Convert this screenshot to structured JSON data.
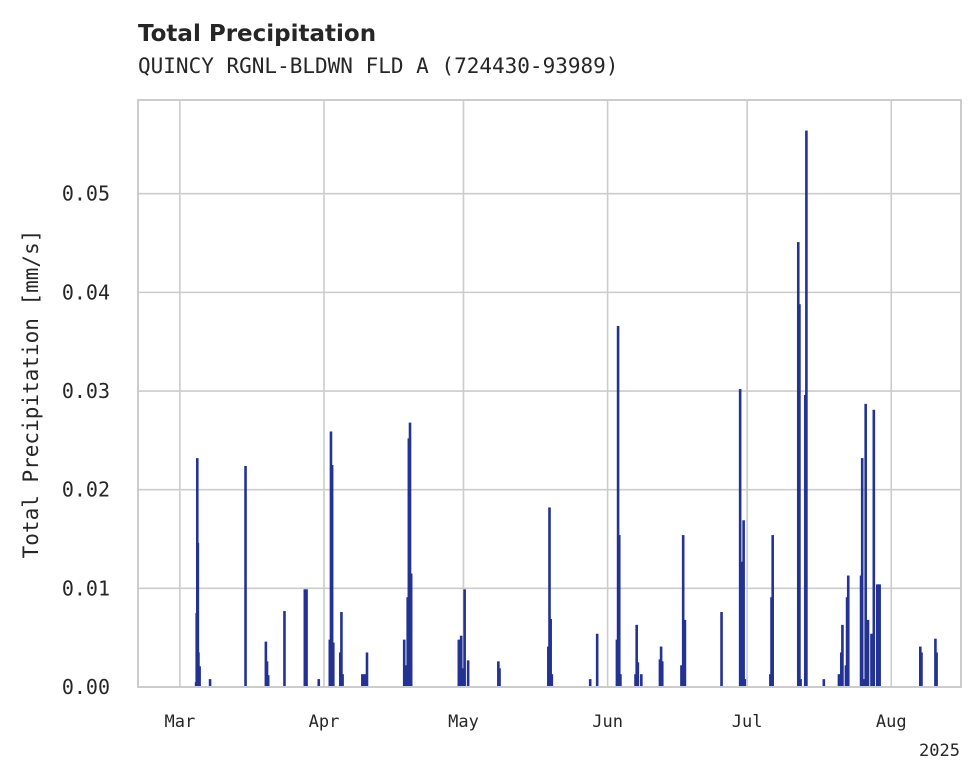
{
  "chart_data": {
    "type": "bar",
    "title": "Total Precipitation",
    "subtitle": "QUINCY RGNL-BLDWN FLD A (724430-93989)",
    "xlabel": "",
    "ylabel": "Total Precipitation [mm/s]",
    "year_label": "2025",
    "xlim": [
      "2025-02-20",
      "2025-08-16"
    ],
    "ylim": [
      0,
      0.0595
    ],
    "yticks": [
      {
        "value": 0.0,
        "label": "0.00"
      },
      {
        "value": 0.01,
        "label": "0.01"
      },
      {
        "value": 0.02,
        "label": "0.02"
      },
      {
        "value": 0.03,
        "label": "0.03"
      },
      {
        "value": 0.04,
        "label": "0.04"
      },
      {
        "value": 0.05,
        "label": "0.05"
      }
    ],
    "xticks": [
      {
        "date": "2025-03-01",
        "label": "Mar"
      },
      {
        "date": "2025-04-01",
        "label": "Apr"
      },
      {
        "date": "2025-05-01",
        "label": "May"
      },
      {
        "date": "2025-06-01",
        "label": "Jun"
      },
      {
        "date": "2025-07-01",
        "label": "Jul"
      },
      {
        "date": "2025-08-01",
        "label": "Aug"
      }
    ],
    "grid": true,
    "bar_color": "#233293",
    "series": [
      {
        "values": [
          [
            "2025-03-04T12:00",
            0.0005
          ],
          [
            "2025-03-04T15:00",
            0.0075
          ],
          [
            "2025-03-04T18:00",
            0.0232
          ],
          [
            "2025-03-04T21:00",
            0.0146
          ],
          [
            "2025-03-05T00:00",
            0.0035
          ],
          [
            "2025-03-05T06:00",
            0.0021
          ],
          [
            "2025-03-07T12:00",
            0.0008
          ],
          [
            "2025-03-15T03:00",
            0.0224
          ],
          [
            "2025-03-19T12:00",
            0.0046
          ],
          [
            "2025-03-19T18:00",
            0.0026
          ],
          [
            "2025-03-20T00:00",
            0.0012
          ],
          [
            "2025-03-23T12:00",
            0.0077
          ],
          [
            "2025-03-27T21:00",
            0.0099
          ],
          [
            "2025-03-28T06:00",
            0.0099
          ],
          [
            "2025-03-30T21:00",
            0.0008
          ],
          [
            "2025-04-02T06:00",
            0.0048
          ],
          [
            "2025-04-02T12:00",
            0.0259
          ],
          [
            "2025-04-02T18:00",
            0.0225
          ],
          [
            "2025-04-03T00:00",
            0.0045
          ],
          [
            "2025-04-04T12:00",
            0.0035
          ],
          [
            "2025-04-04T18:00",
            0.0076
          ],
          [
            "2025-04-05T00:00",
            0.0013
          ],
          [
            "2025-04-09T06:00",
            0.0013
          ],
          [
            "2025-04-09T18:00",
            0.0013
          ],
          [
            "2025-04-10T06:00",
            0.0035
          ],
          [
            "2025-04-18T06:00",
            0.0048
          ],
          [
            "2025-04-18T12:00",
            0.0022
          ],
          [
            "2025-04-19T00:00",
            0.0091
          ],
          [
            "2025-04-19T06:00",
            0.0252
          ],
          [
            "2025-04-19T12:00",
            0.0268
          ],
          [
            "2025-04-19T18:00",
            0.0115
          ],
          [
            "2025-04-30T00:00",
            0.0048
          ],
          [
            "2025-04-30T12:00",
            0.0052
          ],
          [
            "2025-04-30T18:00",
            0.0019
          ],
          [
            "2025-05-01T06:00",
            0.0099
          ],
          [
            "2025-05-02T00:00",
            0.0027
          ],
          [
            "2025-05-08T12:00",
            0.0026
          ],
          [
            "2025-05-08T18:00",
            0.0019
          ],
          [
            "2025-05-19T06:00",
            0.0041
          ],
          [
            "2025-05-19T12:00",
            0.0182
          ],
          [
            "2025-05-19T18:00",
            0.0069
          ],
          [
            "2025-05-20T00:00",
            0.0013
          ],
          [
            "2025-05-28T06:00",
            0.0008
          ],
          [
            "2025-05-29T18:00",
            0.0054
          ],
          [
            "2025-06-03T00:00",
            0.0048
          ],
          [
            "2025-06-03T06:00",
            0.0366
          ],
          [
            "2025-06-03T12:00",
            0.0154
          ],
          [
            "2025-06-03T18:00",
            0.0013
          ],
          [
            "2025-06-07T00:00",
            0.0013
          ],
          [
            "2025-06-07T06:00",
            0.0063
          ],
          [
            "2025-06-07T12:00",
            0.0025
          ],
          [
            "2025-06-08T06:00",
            0.0013
          ],
          [
            "2025-06-12T06:00",
            0.0028
          ],
          [
            "2025-06-12T12:00",
            0.0041
          ],
          [
            "2025-06-12T18:00",
            0.0026
          ],
          [
            "2025-06-16T21:00",
            0.0022
          ],
          [
            "2025-06-17T06:00",
            0.0154
          ],
          [
            "2025-06-17T15:00",
            0.0068
          ],
          [
            "2025-06-25T12:00",
            0.0076
          ],
          [
            "2025-06-29T12:00",
            0.0302
          ],
          [
            "2025-06-29T18:00",
            0.0127
          ],
          [
            "2025-06-30T06:00",
            0.0169
          ],
          [
            "2025-06-30T12:00",
            0.0008
          ],
          [
            "2025-07-06T00:00",
            0.0013
          ],
          [
            "2025-07-06T06:00",
            0.0091
          ],
          [
            "2025-07-06T12:00",
            0.0154
          ],
          [
            "2025-07-12T00:00",
            0.0451
          ],
          [
            "2025-07-12T06:00",
            0.0388
          ],
          [
            "2025-07-12T12:00",
            0.0008
          ],
          [
            "2025-07-13T12:00",
            0.0296
          ],
          [
            "2025-07-13T18:00",
            0.0564
          ],
          [
            "2025-07-17T12:00",
            0.0008
          ],
          [
            "2025-07-20T18:00",
            0.0013
          ],
          [
            "2025-07-21T06:00",
            0.0035
          ],
          [
            "2025-07-21T12:00",
            0.0063
          ],
          [
            "2025-07-22T06:00",
            0.0022
          ],
          [
            "2025-07-22T12:00",
            0.0091
          ],
          [
            "2025-07-22T18:00",
            0.0113
          ],
          [
            "2025-07-25T12:00",
            0.0113
          ],
          [
            "2025-07-25T18:00",
            0.0232
          ],
          [
            "2025-07-26T06:00",
            0.0008
          ],
          [
            "2025-07-26T12:00",
            0.0287
          ],
          [
            "2025-07-26T18:00",
            0.0068
          ],
          [
            "2025-07-27T00:00",
            0.0068
          ],
          [
            "2025-07-27T18:00",
            0.0054
          ],
          [
            "2025-07-28T06:00",
            0.0281
          ],
          [
            "2025-07-29T00:00",
            0.0104
          ],
          [
            "2025-07-29T06:00",
            0.0104
          ],
          [
            "2025-07-29T12:00",
            0.0104
          ],
          [
            "2025-08-07T06:00",
            0.0041
          ],
          [
            "2025-08-07T12:00",
            0.0035
          ],
          [
            "2025-08-10T12:00",
            0.0049
          ],
          [
            "2025-08-10T18:00",
            0.0035
          ]
        ]
      }
    ]
  }
}
